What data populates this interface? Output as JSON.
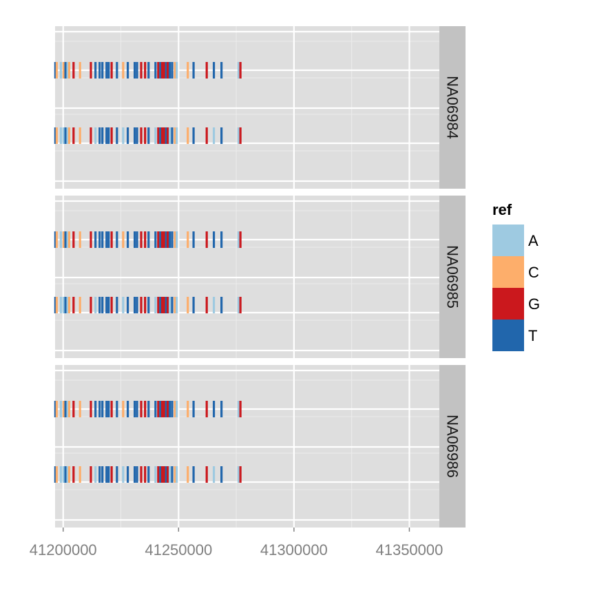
{
  "chart_data": {
    "type": "strip",
    "x_tick_labels": [
      "41200000",
      "41250000",
      "41300000",
      "41350000"
    ],
    "x_ticks": [
      41200000,
      41250000,
      41300000,
      41350000
    ],
    "xlim": [
      41196500,
      41363000
    ],
    "grid": true,
    "facets": [
      "NA06984",
      "NA06985",
      "NA06986"
    ],
    "track_rows": 2,
    "legend": {
      "title": "ref",
      "position": "right",
      "entries": [
        {
          "label": "A",
          "color": "#9ecae1"
        },
        {
          "label": "C",
          "color": "#fdae6b"
        },
        {
          "label": "G",
          "color": "#cb181d"
        },
        {
          "label": "T",
          "color": "#2166ac"
        }
      ]
    },
    "variants": [
      {
        "pos": 41196600,
        "ref": "T"
      },
      {
        "pos": 41197200,
        "ref": "C"
      },
      {
        "pos": 41199000,
        "ref": "A"
      },
      {
        "pos": 41200200,
        "ref": "C"
      },
      {
        "pos": 41201000,
        "ref": "T"
      },
      {
        "pos": 41201900,
        "ref": "A"
      },
      {
        "pos": 41202600,
        "ref": "C"
      },
      {
        "pos": 41204500,
        "ref": "G"
      },
      {
        "pos": 41207300,
        "ref": "C"
      },
      {
        "pos": 41212000,
        "ref": "G"
      },
      {
        "pos": 41214000,
        "ref": "T"
      },
      {
        "pos": 41215800,
        "ref": "T"
      },
      {
        "pos": 41217000,
        "ref": "T"
      },
      {
        "pos": 41218800,
        "ref": "T"
      },
      {
        "pos": 41219700,
        "ref": "T"
      },
      {
        "pos": 41221000,
        "ref": "G"
      },
      {
        "pos": 41223300,
        "ref": "T"
      },
      {
        "pos": 41226000,
        "ref": "C"
      },
      {
        "pos": 41228000,
        "ref": "T"
      },
      {
        "pos": 41231000,
        "ref": "T"
      },
      {
        "pos": 41232000,
        "ref": "T"
      },
      {
        "pos": 41233800,
        "ref": "G"
      },
      {
        "pos": 41235500,
        "ref": "G"
      },
      {
        "pos": 41237000,
        "ref": "T"
      },
      {
        "pos": 41240000,
        "ref": "T"
      },
      {
        "pos": 41241200,
        "ref": "G"
      },
      {
        "pos": 41242100,
        "ref": "T"
      },
      {
        "pos": 41242900,
        "ref": "G"
      },
      {
        "pos": 41243800,
        "ref": "G"
      },
      {
        "pos": 41244600,
        "ref": "T"
      },
      {
        "pos": 41245300,
        "ref": "G"
      },
      {
        "pos": 41246200,
        "ref": "T"
      },
      {
        "pos": 41247200,
        "ref": "T"
      },
      {
        "pos": 41248400,
        "ref": "C"
      },
      {
        "pos": 41249200,
        "ref": "A"
      },
      {
        "pos": 41254000,
        "ref": "C"
      },
      {
        "pos": 41256500,
        "ref": "T"
      },
      {
        "pos": 41262200,
        "ref": "G"
      },
      {
        "pos": 41265300,
        "ref": "T"
      },
      {
        "pos": 41268600,
        "ref": "T"
      },
      {
        "pos": 41276000,
        "ref": "A"
      },
      {
        "pos": 41276800,
        "ref": "G"
      }
    ]
  }
}
